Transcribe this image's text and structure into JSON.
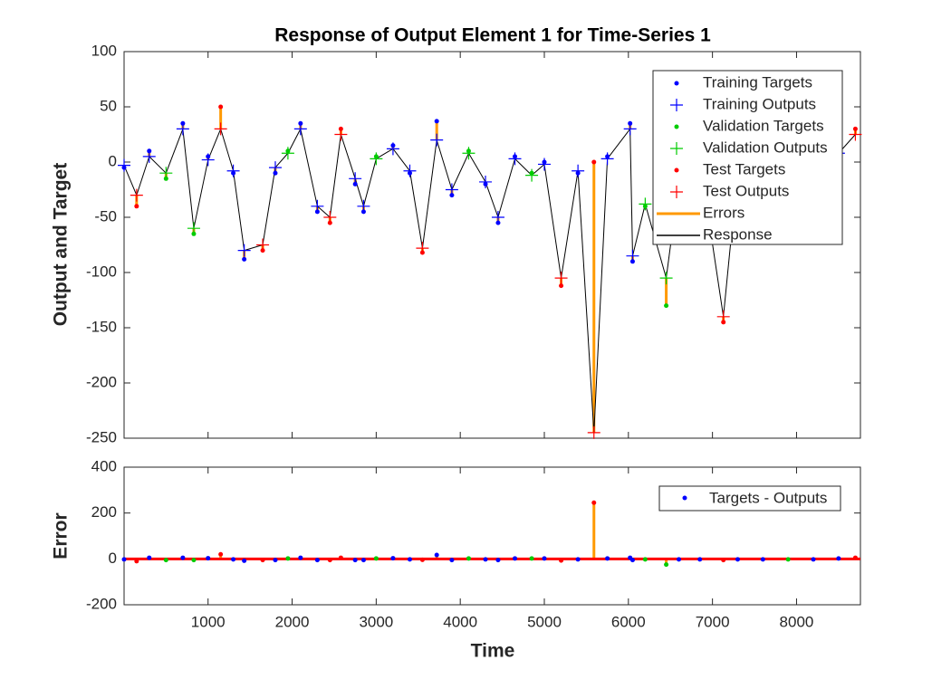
{
  "chart_data": [
    {
      "type": "scatter",
      "title": "Response of Output Element 1 for Time-Series 1",
      "y_label": "Output and Target",
      "x": [
        1,
        150,
        300,
        500,
        700,
        830,
        1000,
        1150,
        1300,
        1430,
        1650,
        1800,
        1950,
        2100,
        2300,
        2450,
        2580,
        2750,
        2850,
        3000,
        3200,
        3400,
        3550,
        3720,
        3900,
        4100,
        4300,
        4450,
        4650,
        4850,
        5000,
        5200,
        5400,
        5590,
        5750,
        6020,
        6050,
        6200,
        6450,
        6600,
        6850,
        7130,
        7300,
        7600,
        7900,
        8200,
        8500,
        8700
      ],
      "series": [
        {
          "name": "Training Targets",
          "color": "#0000ff",
          "marker": "dot",
          "values": [
            -5,
            null,
            10,
            null,
            35,
            null,
            5,
            null,
            -10,
            -88,
            null,
            -10,
            null,
            35,
            -45,
            null,
            null,
            -20,
            -45,
            null,
            15,
            -10,
            null,
            37,
            -30,
            null,
            -20,
            -55,
            5,
            null,
            0,
            null,
            -10,
            null,
            5,
            35,
            -90,
            null,
            null,
            -20,
            0,
            null,
            -10,
            0,
            null,
            -10,
            10,
            null
          ]
        },
        {
          "name": "Training Outputs",
          "color": "#0000ff",
          "marker": "plus",
          "values": [
            -3,
            null,
            5,
            null,
            30,
            null,
            2,
            null,
            -8,
            -80,
            null,
            -5,
            null,
            30,
            -40,
            null,
            null,
            -15,
            -40,
            null,
            12,
            -8,
            null,
            20,
            -25,
            null,
            -18,
            -50,
            3,
            null,
            -2,
            null,
            -8,
            null,
            3,
            30,
            -85,
            null,
            null,
            -18,
            2,
            null,
            -8,
            2,
            null,
            -8,
            8,
            null
          ]
        },
        {
          "name": "Validation Targets",
          "color": "#00cc00",
          "marker": "dot",
          "values": [
            null,
            null,
            null,
            -15,
            null,
            -65,
            null,
            null,
            null,
            null,
            null,
            null,
            10,
            null,
            null,
            null,
            null,
            null,
            null,
            5,
            null,
            null,
            null,
            null,
            null,
            10,
            null,
            null,
            null,
            -10,
            null,
            null,
            null,
            null,
            null,
            null,
            null,
            -40,
            -130,
            null,
            null,
            null,
            null,
            null,
            -5,
            null,
            null,
            null
          ]
        },
        {
          "name": "Validation Outputs",
          "color": "#00cc00",
          "marker": "plus",
          "values": [
            null,
            null,
            null,
            -10,
            null,
            -60,
            null,
            null,
            null,
            null,
            null,
            null,
            8,
            null,
            null,
            null,
            null,
            null,
            null,
            3,
            null,
            null,
            null,
            null,
            null,
            8,
            null,
            null,
            null,
            -12,
            null,
            null,
            null,
            null,
            null,
            null,
            null,
            -38,
            -105,
            null,
            null,
            null,
            null,
            null,
            -3,
            null,
            null,
            null
          ]
        },
        {
          "name": "Test Targets",
          "color": "#ff0000",
          "marker": "dot",
          "values": [
            null,
            -40,
            null,
            null,
            null,
            null,
            null,
            50,
            null,
            null,
            -80,
            null,
            null,
            null,
            null,
            -55,
            30,
            null,
            null,
            null,
            null,
            null,
            -82,
            null,
            null,
            null,
            null,
            null,
            null,
            null,
            null,
            -112,
            null,
            0,
            null,
            null,
            null,
            null,
            null,
            null,
            null,
            -145,
            null,
            null,
            null,
            null,
            null,
            30
          ]
        },
        {
          "name": "Test Outputs",
          "color": "#ff0000",
          "marker": "plus",
          "values": [
            null,
            -30,
            null,
            null,
            null,
            null,
            null,
            30,
            null,
            null,
            -75,
            null,
            null,
            null,
            null,
            -50,
            25,
            null,
            null,
            null,
            null,
            null,
            -78,
            null,
            null,
            null,
            null,
            null,
            null,
            null,
            null,
            -105,
            null,
            -245,
            null,
            null,
            null,
            null,
            null,
            null,
            null,
            -140,
            null,
            null,
            null,
            null,
            null,
            25
          ]
        },
        {
          "name": "Errors",
          "color": "#ff9900",
          "marker": "line"
        },
        {
          "name": "Response",
          "color": "#000000",
          "marker": "line"
        }
      ],
      "xlim": [
        1,
        8760
      ],
      "ylim": [
        -250,
        100
      ],
      "yticks": [
        -250,
        -200,
        -150,
        -100,
        -50,
        0,
        50,
        100
      ],
      "legend": "upper right"
    },
    {
      "type": "stem",
      "x_label": "Time",
      "y_label": "Error",
      "x": [
        1,
        150,
        300,
        500,
        700,
        830,
        1000,
        1150,
        1300,
        1430,
        1650,
        1800,
        1950,
        2100,
        2300,
        2450,
        2580,
        2750,
        2850,
        3000,
        3200,
        3400,
        3550,
        3720,
        3900,
        4100,
        4300,
        4450,
        4650,
        4850,
        5000,
        5200,
        5400,
        5590,
        5750,
        6020,
        6050,
        6200,
        6450,
        6600,
        6850,
        7130,
        7300,
        7600,
        7900,
        8200,
        8500,
        8700
      ],
      "series": [
        {
          "name": "Targets - Outputs",
          "color": "#0000ff",
          "stem_color": "#ff9900",
          "values": [
            -2,
            -10,
            5,
            -5,
            5,
            -5,
            3,
            20,
            -2,
            -8,
            -5,
            -5,
            2,
            5,
            -5,
            -5,
            5,
            -5,
            -5,
            2,
            3,
            -2,
            -4,
            17,
            -5,
            2,
            -2,
            -5,
            2,
            2,
            2,
            -7,
            -2,
            245,
            2,
            5,
            -5,
            -2,
            -25,
            -2,
            -2,
            -5,
            -2,
            -2,
            -2,
            -2,
            2,
            5
          ]
        }
      ],
      "xlim": [
        1,
        8760
      ],
      "ylim": [
        -200,
        400
      ],
      "yticks": [
        -200,
        0,
        200,
        400
      ],
      "xticks": [
        1000,
        2000,
        3000,
        4000,
        5000,
        6000,
        7000,
        8000
      ],
      "legend": "upper right"
    }
  ]
}
